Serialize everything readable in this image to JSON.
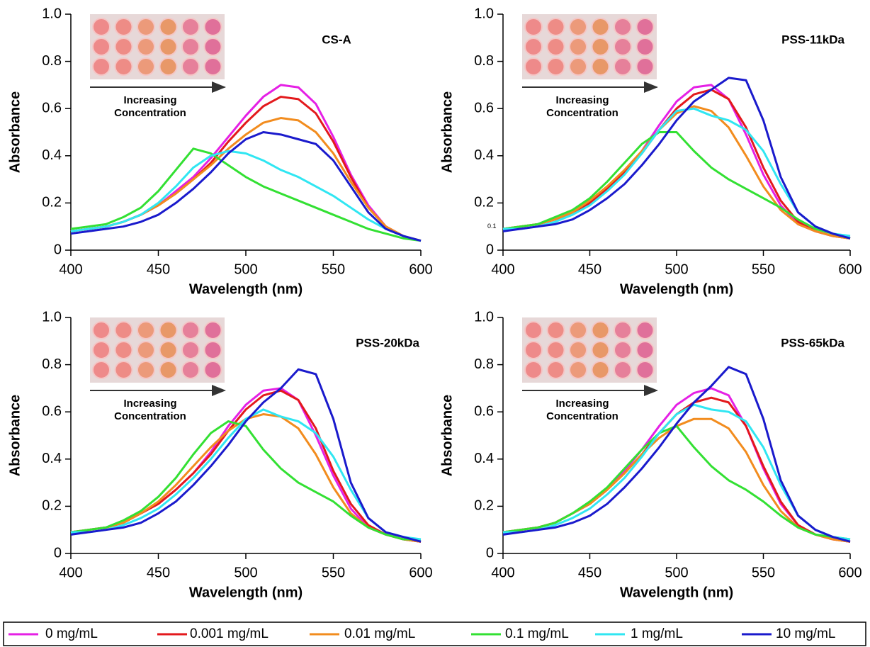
{
  "chart_data": [
    {
      "type": "line",
      "title": "CS-A",
      "xlabel": "Wavelength (nm)",
      "ylabel": "Absorbance",
      "annotations": [
        "Increasing",
        "Concentration"
      ],
      "x": [
        400,
        410,
        420,
        430,
        440,
        450,
        460,
        470,
        480,
        490,
        500,
        510,
        520,
        530,
        540,
        550,
        560,
        570,
        580,
        590,
        600
      ],
      "xlim": [
        400,
        600
      ],
      "xticks": [
        400,
        450,
        500,
        550,
        600
      ],
      "ylim": [
        0,
        1
      ],
      "yticks": [
        0,
        0.2,
        0.4,
        0.6,
        0.8,
        {
          "value": 1,
          "label": "1.0"
        }
      ],
      "series": [
        {
          "name": "0 mg/mL",
          "color": "#e520e5",
          "values": [
            0.08,
            0.09,
            0.1,
            0.12,
            0.15,
            0.19,
            0.25,
            0.31,
            0.39,
            0.48,
            0.57,
            0.65,
            0.7,
            0.69,
            0.62,
            0.48,
            0.32,
            0.19,
            0.1,
            0.06,
            0.04
          ]
        },
        {
          "name": "0.001 mg/mL",
          "color": "#e3191c",
          "values": [
            0.08,
            0.09,
            0.1,
            0.12,
            0.15,
            0.19,
            0.24,
            0.3,
            0.37,
            0.46,
            0.54,
            0.61,
            0.65,
            0.64,
            0.58,
            0.46,
            0.31,
            0.18,
            0.1,
            0.06,
            0.04
          ]
        },
        {
          "name": "0.01 mg/mL",
          "color": "#f28c1e",
          "values": [
            0.08,
            0.09,
            0.1,
            0.12,
            0.15,
            0.19,
            0.24,
            0.3,
            0.36,
            0.43,
            0.49,
            0.54,
            0.56,
            0.55,
            0.5,
            0.41,
            0.29,
            0.18,
            0.1,
            0.06,
            0.04
          ]
        },
        {
          "name": "0.1 mg/mL",
          "color": "#33e033",
          "values": [
            0.09,
            0.1,
            0.11,
            0.14,
            0.18,
            0.25,
            0.34,
            0.43,
            0.41,
            0.36,
            0.31,
            0.27,
            0.24,
            0.21,
            0.18,
            0.15,
            0.12,
            0.09,
            0.07,
            0.05,
            0.04
          ]
        },
        {
          "name": "1 mg/mL",
          "color": "#30e6f2",
          "values": [
            0.08,
            0.09,
            0.1,
            0.12,
            0.15,
            0.2,
            0.27,
            0.35,
            0.4,
            0.42,
            0.41,
            0.38,
            0.34,
            0.31,
            0.27,
            0.23,
            0.18,
            0.13,
            0.09,
            0.06,
            0.04
          ]
        },
        {
          "name": "10 mg/mL",
          "color": "#1a1acc",
          "values": [
            0.07,
            0.08,
            0.09,
            0.1,
            0.12,
            0.15,
            0.2,
            0.26,
            0.33,
            0.41,
            0.47,
            0.5,
            0.49,
            0.47,
            0.45,
            0.38,
            0.27,
            0.16,
            0.09,
            0.06,
            0.04
          ]
        }
      ]
    },
    {
      "type": "line",
      "title": "PSS-11kDa",
      "xlabel": "Wavelength (nm)",
      "ylabel": "Absorbance",
      "annotations": [
        "Increasing",
        "Concentration"
      ],
      "note": "0.1",
      "x": [
        400,
        410,
        420,
        430,
        440,
        450,
        460,
        470,
        480,
        490,
        500,
        510,
        520,
        530,
        540,
        550,
        560,
        570,
        580,
        590,
        600
      ],
      "xlim": [
        400,
        600
      ],
      "xticks": [
        400,
        450,
        500,
        550,
        600
      ],
      "ylim": [
        0,
        1
      ],
      "yticks": [
        0,
        0.2,
        0.4,
        0.6,
        0.8,
        {
          "value": 1,
          "label": "1.0"
        }
      ],
      "series": [
        {
          "name": "0 mg/mL",
          "color": "#e520e5",
          "values": [
            0.09,
            0.1,
            0.11,
            0.13,
            0.16,
            0.2,
            0.26,
            0.33,
            0.42,
            0.53,
            0.63,
            0.69,
            0.7,
            0.64,
            0.49,
            0.32,
            0.19,
            0.11,
            0.08,
            0.06,
            0.05
          ]
        },
        {
          "name": "0.001 mg/mL",
          "color": "#e3191c",
          "values": [
            0.09,
            0.1,
            0.11,
            0.13,
            0.16,
            0.2,
            0.26,
            0.33,
            0.41,
            0.51,
            0.6,
            0.66,
            0.68,
            0.64,
            0.52,
            0.35,
            0.21,
            0.12,
            0.08,
            0.06,
            0.05
          ]
        },
        {
          "name": "0.01 mg/mL",
          "color": "#f28c1e",
          "values": [
            0.09,
            0.1,
            0.11,
            0.13,
            0.16,
            0.21,
            0.27,
            0.34,
            0.42,
            0.51,
            0.58,
            0.61,
            0.59,
            0.52,
            0.4,
            0.27,
            0.17,
            0.11,
            0.08,
            0.06,
            0.05
          ]
        },
        {
          "name": "0.1 mg/mL",
          "color": "#33e033",
          "values": [
            0.09,
            0.1,
            0.11,
            0.14,
            0.17,
            0.22,
            0.29,
            0.37,
            0.45,
            0.5,
            0.5,
            0.42,
            0.35,
            0.3,
            0.26,
            0.22,
            0.18,
            0.13,
            0.09,
            0.07,
            0.05
          ]
        },
        {
          "name": "1 mg/mL",
          "color": "#30e6f2",
          "values": [
            0.09,
            0.09,
            0.1,
            0.12,
            0.15,
            0.19,
            0.25,
            0.32,
            0.41,
            0.51,
            0.59,
            0.6,
            0.57,
            0.55,
            0.51,
            0.42,
            0.28,
            0.16,
            0.1,
            0.07,
            0.06
          ]
        },
        {
          "name": "10 mg/mL",
          "color": "#1a1acc",
          "values": [
            0.08,
            0.09,
            0.1,
            0.11,
            0.13,
            0.17,
            0.22,
            0.28,
            0.36,
            0.45,
            0.55,
            0.63,
            0.68,
            0.73,
            0.72,
            0.55,
            0.31,
            0.16,
            0.1,
            0.07,
            0.05
          ]
        }
      ]
    },
    {
      "type": "line",
      "title": "PSS-20kDa",
      "xlabel": "Wavelength (nm)",
      "ylabel": "Absorbance",
      "annotations": [
        "Increasing",
        "Concentration"
      ],
      "x": [
        400,
        410,
        420,
        430,
        440,
        450,
        460,
        470,
        480,
        490,
        500,
        510,
        520,
        530,
        540,
        550,
        560,
        570,
        580,
        590,
        600
      ],
      "xlim": [
        400,
        600
      ],
      "xticks": [
        400,
        450,
        500,
        550,
        600
      ],
      "ylim": [
        0,
        1
      ],
      "yticks": [
        0,
        0.2,
        0.4,
        0.6,
        0.8,
        {
          "value": 1,
          "label": "1.0"
        }
      ],
      "series": [
        {
          "name": "0 mg/mL",
          "color": "#e520e5",
          "values": [
            0.09,
            0.1,
            0.11,
            0.13,
            0.17,
            0.21,
            0.27,
            0.34,
            0.43,
            0.54,
            0.63,
            0.69,
            0.7,
            0.65,
            0.5,
            0.33,
            0.19,
            0.11,
            0.08,
            0.06,
            0.05
          ]
        },
        {
          "name": "0.001 mg/mL",
          "color": "#e3191c",
          "values": [
            0.09,
            0.1,
            0.11,
            0.13,
            0.17,
            0.21,
            0.27,
            0.34,
            0.42,
            0.52,
            0.61,
            0.67,
            0.69,
            0.65,
            0.53,
            0.35,
            0.21,
            0.12,
            0.08,
            0.06,
            0.05
          ]
        },
        {
          "name": "0.01 mg/mL",
          "color": "#f28c1e",
          "values": [
            0.09,
            0.1,
            0.11,
            0.13,
            0.17,
            0.22,
            0.29,
            0.37,
            0.45,
            0.52,
            0.57,
            0.59,
            0.58,
            0.53,
            0.42,
            0.28,
            0.17,
            0.11,
            0.08,
            0.06,
            0.05
          ]
        },
        {
          "name": "0.1 mg/mL",
          "color": "#33e033",
          "values": [
            0.09,
            0.1,
            0.11,
            0.14,
            0.18,
            0.24,
            0.32,
            0.42,
            0.51,
            0.56,
            0.54,
            0.44,
            0.36,
            0.3,
            0.26,
            0.22,
            0.16,
            0.11,
            0.08,
            0.06,
            0.06
          ]
        },
        {
          "name": "1 mg/mL",
          "color": "#30e6f2",
          "values": [
            0.09,
            0.09,
            0.1,
            0.12,
            0.15,
            0.19,
            0.25,
            0.32,
            0.4,
            0.49,
            0.57,
            0.61,
            0.58,
            0.56,
            0.51,
            0.41,
            0.27,
            0.15,
            0.09,
            0.07,
            0.06
          ]
        },
        {
          "name": "10 mg/mL",
          "color": "#1a1acc",
          "values": [
            0.08,
            0.09,
            0.1,
            0.11,
            0.13,
            0.17,
            0.22,
            0.29,
            0.37,
            0.46,
            0.56,
            0.64,
            0.7,
            0.78,
            0.76,
            0.57,
            0.3,
            0.15,
            0.09,
            0.07,
            0.05
          ]
        }
      ]
    },
    {
      "type": "line",
      "title": "PSS-65kDa",
      "xlabel": "Wavelength (nm)",
      "ylabel": "Absorbance",
      "annotations": [
        "Increasing",
        "Concentration"
      ],
      "x": [
        400,
        410,
        420,
        430,
        440,
        450,
        460,
        470,
        480,
        490,
        500,
        510,
        520,
        530,
        540,
        550,
        560,
        570,
        580,
        590,
        600
      ],
      "xlim": [
        400,
        600
      ],
      "xticks": [
        400,
        450,
        500,
        550,
        600
      ],
      "ylim": [
        0,
        1
      ],
      "yticks": [
        0,
        0.2,
        0.4,
        0.6,
        0.8,
        {
          "value": 1,
          "label": "1.0"
        }
      ],
      "series": [
        {
          "name": "0 mg/mL",
          "color": "#e520e5",
          "values": [
            0.09,
            0.1,
            0.11,
            0.13,
            0.17,
            0.21,
            0.27,
            0.35,
            0.44,
            0.54,
            0.63,
            0.68,
            0.7,
            0.67,
            0.54,
            0.36,
            0.21,
            0.12,
            0.08,
            0.06,
            0.05
          ]
        },
        {
          "name": "0.001 mg/mL",
          "color": "#e3191c",
          "values": [
            0.09,
            0.1,
            0.11,
            0.13,
            0.17,
            0.21,
            0.27,
            0.34,
            0.42,
            0.51,
            0.59,
            0.64,
            0.66,
            0.64,
            0.54,
            0.37,
            0.22,
            0.12,
            0.08,
            0.06,
            0.05
          ]
        },
        {
          "name": "0.01 mg/mL",
          "color": "#f28c1e",
          "values": [
            0.09,
            0.1,
            0.11,
            0.13,
            0.17,
            0.21,
            0.27,
            0.34,
            0.42,
            0.49,
            0.54,
            0.57,
            0.57,
            0.53,
            0.43,
            0.29,
            0.18,
            0.11,
            0.08,
            0.06,
            0.05
          ]
        },
        {
          "name": "0.1 mg/mL",
          "color": "#33e033",
          "values": [
            0.09,
            0.1,
            0.11,
            0.13,
            0.17,
            0.22,
            0.28,
            0.36,
            0.44,
            0.51,
            0.54,
            0.45,
            0.37,
            0.31,
            0.27,
            0.22,
            0.16,
            0.11,
            0.08,
            0.07,
            0.06
          ]
        },
        {
          "name": "1 mg/mL",
          "color": "#30e6f2",
          "values": [
            0.09,
            0.09,
            0.1,
            0.12,
            0.15,
            0.19,
            0.25,
            0.32,
            0.41,
            0.51,
            0.59,
            0.63,
            0.61,
            0.6,
            0.56,
            0.45,
            0.29,
            0.16,
            0.1,
            0.07,
            0.06
          ]
        },
        {
          "name": "10 mg/mL",
          "color": "#1a1acc",
          "values": [
            0.08,
            0.09,
            0.1,
            0.11,
            0.13,
            0.16,
            0.21,
            0.28,
            0.36,
            0.45,
            0.55,
            0.64,
            0.71,
            0.79,
            0.76,
            0.57,
            0.31,
            0.16,
            0.1,
            0.07,
            0.05
          ]
        }
      ]
    }
  ]
}
